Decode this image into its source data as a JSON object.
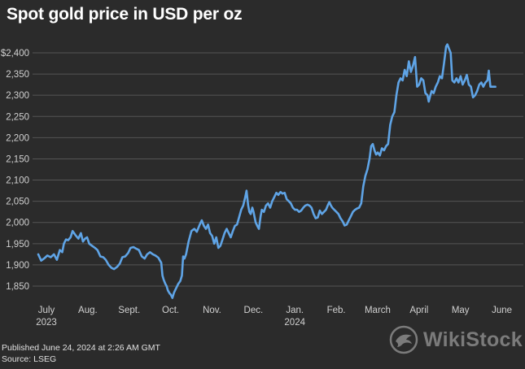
{
  "title": "Spot gold price in USD per oz",
  "footer": {
    "published": "Published June 24, 2024 at 2:26 AM GMT",
    "source": "Source: LSEG"
  },
  "watermark": {
    "text": "WikiStock",
    "icon": "eagle-logo-icon"
  },
  "colors": {
    "background": "#2b2b2b",
    "line": "#5fa4e6",
    "grid": "#555555",
    "text": "#ffffff",
    "axis_text": "#d0d0d0"
  },
  "chart_data": {
    "type": "line",
    "title": "Spot gold price in USD per oz",
    "xlabel": "",
    "ylabel": "",
    "ylim": [
      1800,
      2420
    ],
    "grid": true,
    "y_ticks": [
      1850,
      1900,
      1950,
      2000,
      2050,
      2100,
      2150,
      2200,
      2250,
      2300,
      2350,
      2400
    ],
    "y_tick_labels": [
      "1,850",
      "1,900",
      "1,950",
      "2,000",
      "2,050",
      "2,100",
      "2,150",
      "2,200",
      "2,250",
      "2,300",
      "2,350",
      "$2,400"
    ],
    "x_ticks": [
      {
        "label": "July",
        "sub": "2023",
        "month_index": 0
      },
      {
        "label": "Aug.",
        "sub": "",
        "month_index": 1
      },
      {
        "label": "Sept.",
        "sub": "",
        "month_index": 2
      },
      {
        "label": "Oct.",
        "sub": "",
        "month_index": 3
      },
      {
        "label": "Nov.",
        "sub": "",
        "month_index": 4
      },
      {
        "label": "Dec.",
        "sub": "",
        "month_index": 5
      },
      {
        "label": "Jan.",
        "sub": "2024",
        "month_index": 6
      },
      {
        "label": "Feb.",
        "sub": "",
        "month_index": 7
      },
      {
        "label": "March",
        "sub": "",
        "month_index": 8
      },
      {
        "label": "April",
        "sub": "",
        "month_index": 9
      },
      {
        "label": "May",
        "sub": "",
        "month_index": 10
      },
      {
        "label": "June",
        "sub": "",
        "month_index": 11
      }
    ],
    "x_range": [
      -0.05,
      11.85
    ],
    "series": [
      {
        "name": "Spot gold",
        "points": [
          [
            0.0,
            1925
          ],
          [
            0.07,
            1910
          ],
          [
            0.14,
            1915
          ],
          [
            0.22,
            1922
          ],
          [
            0.3,
            1918
          ],
          [
            0.38,
            1925
          ],
          [
            0.45,
            1912
          ],
          [
            0.52,
            1935
          ],
          [
            0.58,
            1930
          ],
          [
            0.62,
            1950
          ],
          [
            0.67,
            1960
          ],
          [
            0.72,
            1958
          ],
          [
            0.78,
            1965
          ],
          [
            0.83,
            1980
          ],
          [
            0.9,
            1970
          ],
          [
            0.97,
            1962
          ],
          [
            1.03,
            1975
          ],
          [
            1.08,
            1955
          ],
          [
            1.13,
            1962
          ],
          [
            1.18,
            1965
          ],
          [
            1.23,
            1950
          ],
          [
            1.3,
            1945
          ],
          [
            1.37,
            1940
          ],
          [
            1.43,
            1935
          ],
          [
            1.5,
            1920
          ],
          [
            1.57,
            1918
          ],
          [
            1.63,
            1912
          ],
          [
            1.7,
            1900
          ],
          [
            1.77,
            1893
          ],
          [
            1.83,
            1890
          ],
          [
            1.9,
            1895
          ],
          [
            1.97,
            1903
          ],
          [
            2.03,
            1918
          ],
          [
            2.1,
            1920
          ],
          [
            2.17,
            1928
          ],
          [
            2.23,
            1940
          ],
          [
            2.3,
            1942
          ],
          [
            2.37,
            1938
          ],
          [
            2.43,
            1935
          ],
          [
            2.5,
            1920
          ],
          [
            2.57,
            1915
          ],
          [
            2.63,
            1925
          ],
          [
            2.7,
            1930
          ],
          [
            2.77,
            1925
          ],
          [
            2.83,
            1922
          ],
          [
            2.9,
            1917
          ],
          [
            2.97,
            1905
          ],
          [
            3.0,
            1875
          ],
          [
            3.03,
            1865
          ],
          [
            3.07,
            1855
          ],
          [
            3.1,
            1850
          ],
          [
            3.13,
            1840
          ],
          [
            3.17,
            1833
          ],
          [
            3.2,
            1830
          ],
          [
            3.24,
            1822
          ],
          [
            3.28,
            1835
          ],
          [
            3.33,
            1845
          ],
          [
            3.38,
            1855
          ],
          [
            3.43,
            1862
          ],
          [
            3.47,
            1875
          ],
          [
            3.5,
            1920
          ],
          [
            3.53,
            1915
          ],
          [
            3.57,
            1925
          ],
          [
            3.63,
            1955
          ],
          [
            3.7,
            1980
          ],
          [
            3.77,
            1985
          ],
          [
            3.83,
            1978
          ],
          [
            3.9,
            1995
          ],
          [
            3.95,
            2005
          ],
          [
            4.0,
            1992
          ],
          [
            4.05,
            1985
          ],
          [
            4.1,
            1995
          ],
          [
            4.15,
            1975
          ],
          [
            4.2,
            1968
          ],
          [
            4.25,
            1950
          ],
          [
            4.3,
            1965
          ],
          [
            4.35,
            1940
          ],
          [
            4.4,
            1945
          ],
          [
            4.45,
            1960
          ],
          [
            4.5,
            1975
          ],
          [
            4.55,
            1985
          ],
          [
            4.6,
            1975
          ],
          [
            4.65,
            1965
          ],
          [
            4.7,
            1980
          ],
          [
            4.75,
            1992
          ],
          [
            4.8,
            1995
          ],
          [
            4.85,
            2012
          ],
          [
            4.9,
            2030
          ],
          [
            4.95,
            2040
          ],
          [
            5.0,
            2060
          ],
          [
            5.03,
            2075
          ],
          [
            5.07,
            2040
          ],
          [
            5.1,
            2025
          ],
          [
            5.13,
            2020
          ],
          [
            5.17,
            2035
          ],
          [
            5.2,
            2025
          ],
          [
            5.25,
            2000
          ],
          [
            5.3,
            1990
          ],
          [
            5.33,
            1985
          ],
          [
            5.37,
            2015
          ],
          [
            5.4,
            2030
          ],
          [
            5.45,
            2025
          ],
          [
            5.5,
            2040
          ],
          [
            5.55,
            2045
          ],
          [
            5.6,
            2035
          ],
          [
            5.65,
            2050
          ],
          [
            5.7,
            2060
          ],
          [
            5.75,
            2070
          ],
          [
            5.8,
            2065
          ],
          [
            5.85,
            2072
          ],
          [
            5.9,
            2068
          ],
          [
            5.95,
            2070
          ],
          [
            6.0,
            2055
          ],
          [
            6.05,
            2050
          ],
          [
            6.1,
            2045
          ],
          [
            6.15,
            2035
          ],
          [
            6.2,
            2030
          ],
          [
            6.25,
            2030
          ],
          [
            6.3,
            2025
          ],
          [
            6.35,
            2028
          ],
          [
            6.4,
            2035
          ],
          [
            6.45,
            2040
          ],
          [
            6.5,
            2042
          ],
          [
            6.55,
            2040
          ],
          [
            6.6,
            2035
          ],
          [
            6.65,
            2020
          ],
          [
            6.7,
            2010
          ],
          [
            6.75,
            2012
          ],
          [
            6.8,
            2028
          ],
          [
            6.85,
            2020
          ],
          [
            6.9,
            2025
          ],
          [
            6.95,
            2030
          ],
          [
            7.0,
            2042
          ],
          [
            7.03,
            2048
          ],
          [
            7.07,
            2040
          ],
          [
            7.1,
            2035
          ],
          [
            7.15,
            2030
          ],
          [
            7.2,
            2025
          ],
          [
            7.25,
            2020
          ],
          [
            7.3,
            2010
          ],
          [
            7.35,
            2003
          ],
          [
            7.4,
            1993
          ],
          [
            7.45,
            1995
          ],
          [
            7.5,
            2005
          ],
          [
            7.55,
            2015
          ],
          [
            7.6,
            2025
          ],
          [
            7.65,
            2030
          ],
          [
            7.7,
            2033
          ],
          [
            7.75,
            2035
          ],
          [
            7.8,
            2045
          ],
          [
            7.85,
            2085
          ],
          [
            7.9,
            2110
          ],
          [
            7.95,
            2125
          ],
          [
            8.0,
            2150
          ],
          [
            8.04,
            2180
          ],
          [
            8.08,
            2185
          ],
          [
            8.12,
            2170
          ],
          [
            8.16,
            2160
          ],
          [
            8.2,
            2165
          ],
          [
            8.25,
            2158
          ],
          [
            8.3,
            2175
          ],
          [
            8.35,
            2170
          ],
          [
            8.4,
            2180
          ],
          [
            8.45,
            2185
          ],
          [
            8.5,
            2230
          ],
          [
            8.55,
            2250
          ],
          [
            8.6,
            2260
          ],
          [
            8.65,
            2300
          ],
          [
            8.7,
            2330
          ],
          [
            8.75,
            2340
          ],
          [
            8.8,
            2335
          ],
          [
            8.85,
            2360
          ],
          [
            8.9,
            2345
          ],
          [
            8.95,
            2380
          ],
          [
            9.0,
            2355
          ],
          [
            9.05,
            2370
          ],
          [
            9.1,
            2390
          ],
          [
            9.15,
            2320
          ],
          [
            9.2,
            2325
          ],
          [
            9.25,
            2340
          ],
          [
            9.3,
            2335
          ],
          [
            9.35,
            2305
          ],
          [
            9.4,
            2300
          ],
          [
            9.43,
            2285
          ],
          [
            9.47,
            2300
          ],
          [
            9.5,
            2310
          ],
          [
            9.55,
            2305
          ],
          [
            9.6,
            2320
          ],
          [
            9.65,
            2330
          ],
          [
            9.7,
            2345
          ],
          [
            9.75,
            2340
          ],
          [
            9.8,
            2375
          ],
          [
            9.85,
            2415
          ],
          [
            9.88,
            2420
          ],
          [
            9.92,
            2410
          ],
          [
            9.96,
            2400
          ],
          [
            10.0,
            2335
          ],
          [
            10.05,
            2330
          ],
          [
            10.1,
            2340
          ],
          [
            10.15,
            2330
          ],
          [
            10.2,
            2345
          ],
          [
            10.25,
            2325
          ],
          [
            10.3,
            2335
          ],
          [
            10.35,
            2348
          ],
          [
            10.4,
            2325
          ],
          [
            10.45,
            2320
          ],
          [
            10.5,
            2295
          ],
          [
            10.55,
            2300
          ],
          [
            10.6,
            2310
          ],
          [
            10.65,
            2325
          ],
          [
            10.7,
            2330
          ],
          [
            10.75,
            2320
          ],
          [
            10.8,
            2330
          ],
          [
            10.85,
            2335
          ],
          [
            10.88,
            2358
          ],
          [
            10.92,
            2320
          ],
          [
            11.0,
            2320
          ],
          [
            11.04,
            2320
          ]
        ]
      }
    ]
  }
}
